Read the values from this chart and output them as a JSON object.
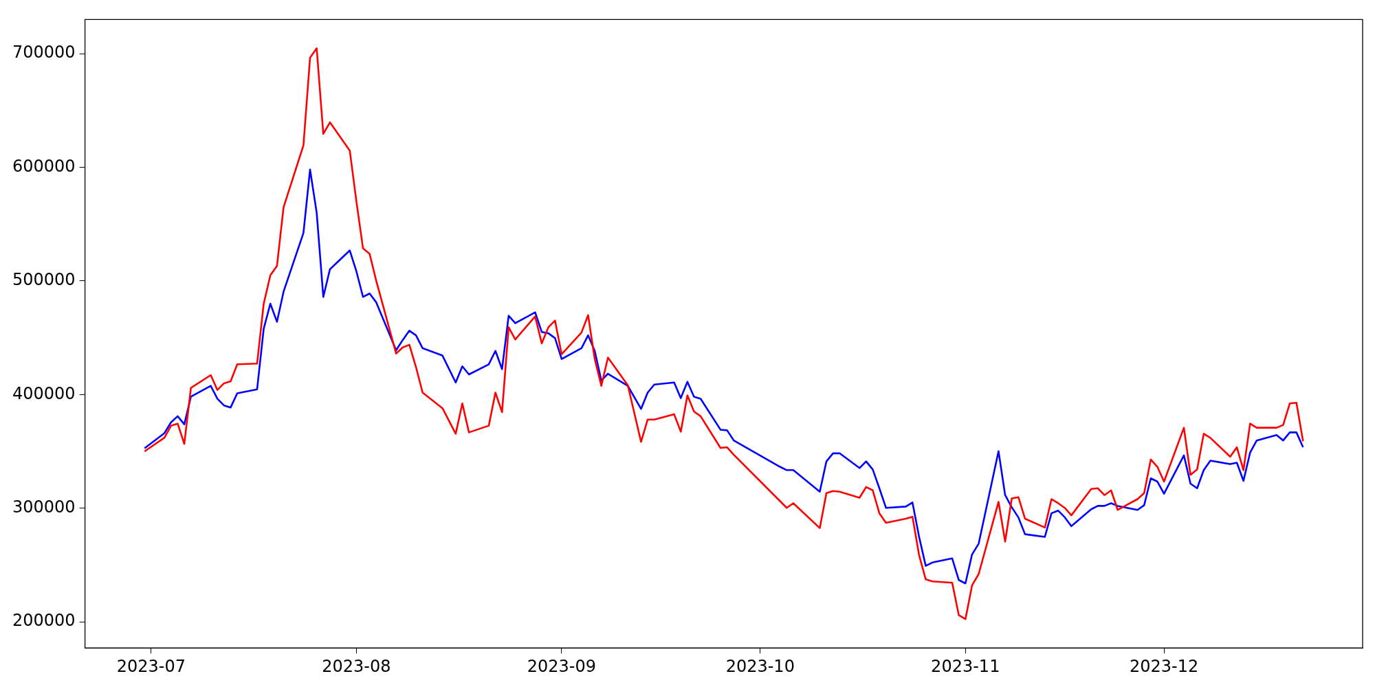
{
  "chart_data": {
    "type": "line",
    "x": [
      "2023-06-30",
      "2023-07-03",
      "2023-07-04",
      "2023-07-05",
      "2023-07-06",
      "2023-07-07",
      "2023-07-10",
      "2023-07-11",
      "2023-07-12",
      "2023-07-13",
      "2023-07-14",
      "2023-07-17",
      "2023-07-18",
      "2023-07-19",
      "2023-07-20",
      "2023-07-21",
      "2023-07-24",
      "2023-07-25",
      "2023-07-26",
      "2023-07-27",
      "2023-07-28",
      "2023-07-31",
      "2023-08-01",
      "2023-08-02",
      "2023-08-03",
      "2023-08-04",
      "2023-08-07",
      "2023-08-08",
      "2023-08-09",
      "2023-08-10",
      "2023-08-11",
      "2023-08-14",
      "2023-08-16",
      "2023-08-17",
      "2023-08-18",
      "2023-08-21",
      "2023-08-22",
      "2023-08-23",
      "2023-08-24",
      "2023-08-25",
      "2023-08-28",
      "2023-08-29",
      "2023-08-30",
      "2023-08-31",
      "2023-09-01",
      "2023-09-04",
      "2023-09-05",
      "2023-09-06",
      "2023-09-07",
      "2023-09-08",
      "2023-09-11",
      "2023-09-13",
      "2023-09-14",
      "2023-09-15",
      "2023-09-18",
      "2023-09-19",
      "2023-09-20",
      "2023-09-21",
      "2023-09-22",
      "2023-09-25",
      "2023-09-26",
      "2023-09-27",
      "2023-10-04",
      "2023-10-05",
      "2023-10-06",
      "2023-10-10",
      "2023-10-11",
      "2023-10-12",
      "2023-10-13",
      "2023-10-16",
      "2023-10-17",
      "2023-10-18",
      "2023-10-19",
      "2023-10-20",
      "2023-10-23",
      "2023-10-24",
      "2023-10-25",
      "2023-10-26",
      "2023-10-27",
      "2023-10-30",
      "2023-10-31",
      "2023-11-01",
      "2023-11-02",
      "2023-11-03",
      "2023-11-06",
      "2023-11-07",
      "2023-11-08",
      "2023-11-09",
      "2023-11-10",
      "2023-11-13",
      "2023-11-14",
      "2023-11-15",
      "2023-11-16",
      "2023-11-17",
      "2023-11-20",
      "2023-11-21",
      "2023-11-22",
      "2023-11-23",
      "2023-11-24",
      "2023-11-27",
      "2023-11-28",
      "2023-11-29",
      "2023-11-30",
      "2023-12-01",
      "2023-12-04",
      "2023-12-05",
      "2023-12-06",
      "2023-12-07",
      "2023-12-08",
      "2023-12-11",
      "2023-12-12",
      "2023-12-13",
      "2023-12-14",
      "2023-12-15",
      "2023-12-18",
      "2023-12-19",
      "2023-12-20",
      "2023-12-21",
      "2023-12-22"
    ],
    "series": [
      {
        "color": "#ff0000",
        "values": [
          350000,
          362000,
          372600,
          374400,
          356600,
          405800,
          417100,
          404000,
          409900,
          411700,
          426600,
          427200,
          480000,
          504900,
          513200,
          564800,
          619300,
          696400,
          704700,
          629400,
          639500,
          614600,
          570000,
          528600,
          523800,
          500000,
          436100,
          441400,
          443800,
          424200,
          401700,
          388000,
          365500,
          392200,
          366700,
          372600,
          401700,
          384500,
          459200,
          448500,
          468700,
          445000,
          459200,
          465100,
          435500,
          454500,
          469900,
          431300,
          407600,
          432500,
          408200,
          358400,
          378000,
          378000,
          382700,
          367300,
          399300,
          385100,
          380900,
          353000,
          353600,
          347100,
          306200,
          300300,
          304400,
          282500,
          313300,
          315100,
          314500,
          309200,
          318600,
          315700,
          295500,
          287200,
          290800,
          292500,
          258700,
          237400,
          235600,
          234400,
          205900,
          202400,
          232000,
          242100,
          305600,
          270600,
          308600,
          309700,
          290800,
          283000,
          308000,
          304400,
          300300,
          293700,
          316900,
          317500,
          311500,
          315700,
          298500,
          308000,
          313300,
          342900,
          336400,
          323400,
          370800,
          329300,
          334100,
          365500,
          361900,
          345300,
          353600,
          333500,
          374400,
          370800,
          370800,
          373200,
          392200,
          392800,
          358900
        ]
      },
      {
        "color": "#0000ff",
        "values": [
          352700,
          366000,
          375600,
          380900,
          373800,
          398100,
          407600,
          396300,
          390400,
          388600,
          401100,
          404600,
          458000,
          480000,
          464000,
          490600,
          542200,
          598000,
          560000,
          485900,
          510200,
          526800,
          508400,
          485900,
          488900,
          481100,
          439000,
          448000,
          456200,
          452100,
          440800,
          434300,
          410600,
          424800,
          417700,
          426600,
          438400,
          422400,
          469300,
          462800,
          472300,
          455000,
          453900,
          449700,
          431300,
          440800,
          452100,
          438400,
          412300,
          418300,
          407600,
          387400,
          401700,
          408800,
          410600,
          396900,
          411200,
          398100,
          396300,
          369100,
          368500,
          359600,
          336400,
          333500,
          333500,
          314500,
          341200,
          348300,
          348300,
          335300,
          341200,
          334100,
          317500,
          300300,
          301400,
          305000,
          274800,
          249300,
          252200,
          255800,
          236800,
          233800,
          259300,
          268800,
          350100,
          311500,
          300800,
          291900,
          277100,
          274800,
          295500,
          297900,
          292000,
          284200,
          299100,
          302000,
          302000,
          304400,
          302000,
          298500,
          302600,
          326300,
          323400,
          312700,
          346500,
          321600,
          317500,
          333500,
          341800,
          338800,
          340000,
          324000,
          348900,
          359600,
          364300,
          359600,
          366700,
          366700,
          353600
        ]
      }
    ],
    "xlim": [
      "2023-06-21",
      "2023-12-31"
    ],
    "xticks": [
      {
        "value": "2023-07-01",
        "label": "2023-07"
      },
      {
        "value": "2023-08-01",
        "label": "2023-08"
      },
      {
        "value": "2023-09-01",
        "label": "2023-09"
      },
      {
        "value": "2023-10-01",
        "label": "2023-10"
      },
      {
        "value": "2023-11-01",
        "label": "2023-11"
      },
      {
        "value": "2023-12-01",
        "label": "2023-12"
      }
    ],
    "ylim": [
      177000,
      730000
    ],
    "yticks": [
      200000,
      300000,
      400000,
      500000,
      600000,
      700000
    ]
  }
}
